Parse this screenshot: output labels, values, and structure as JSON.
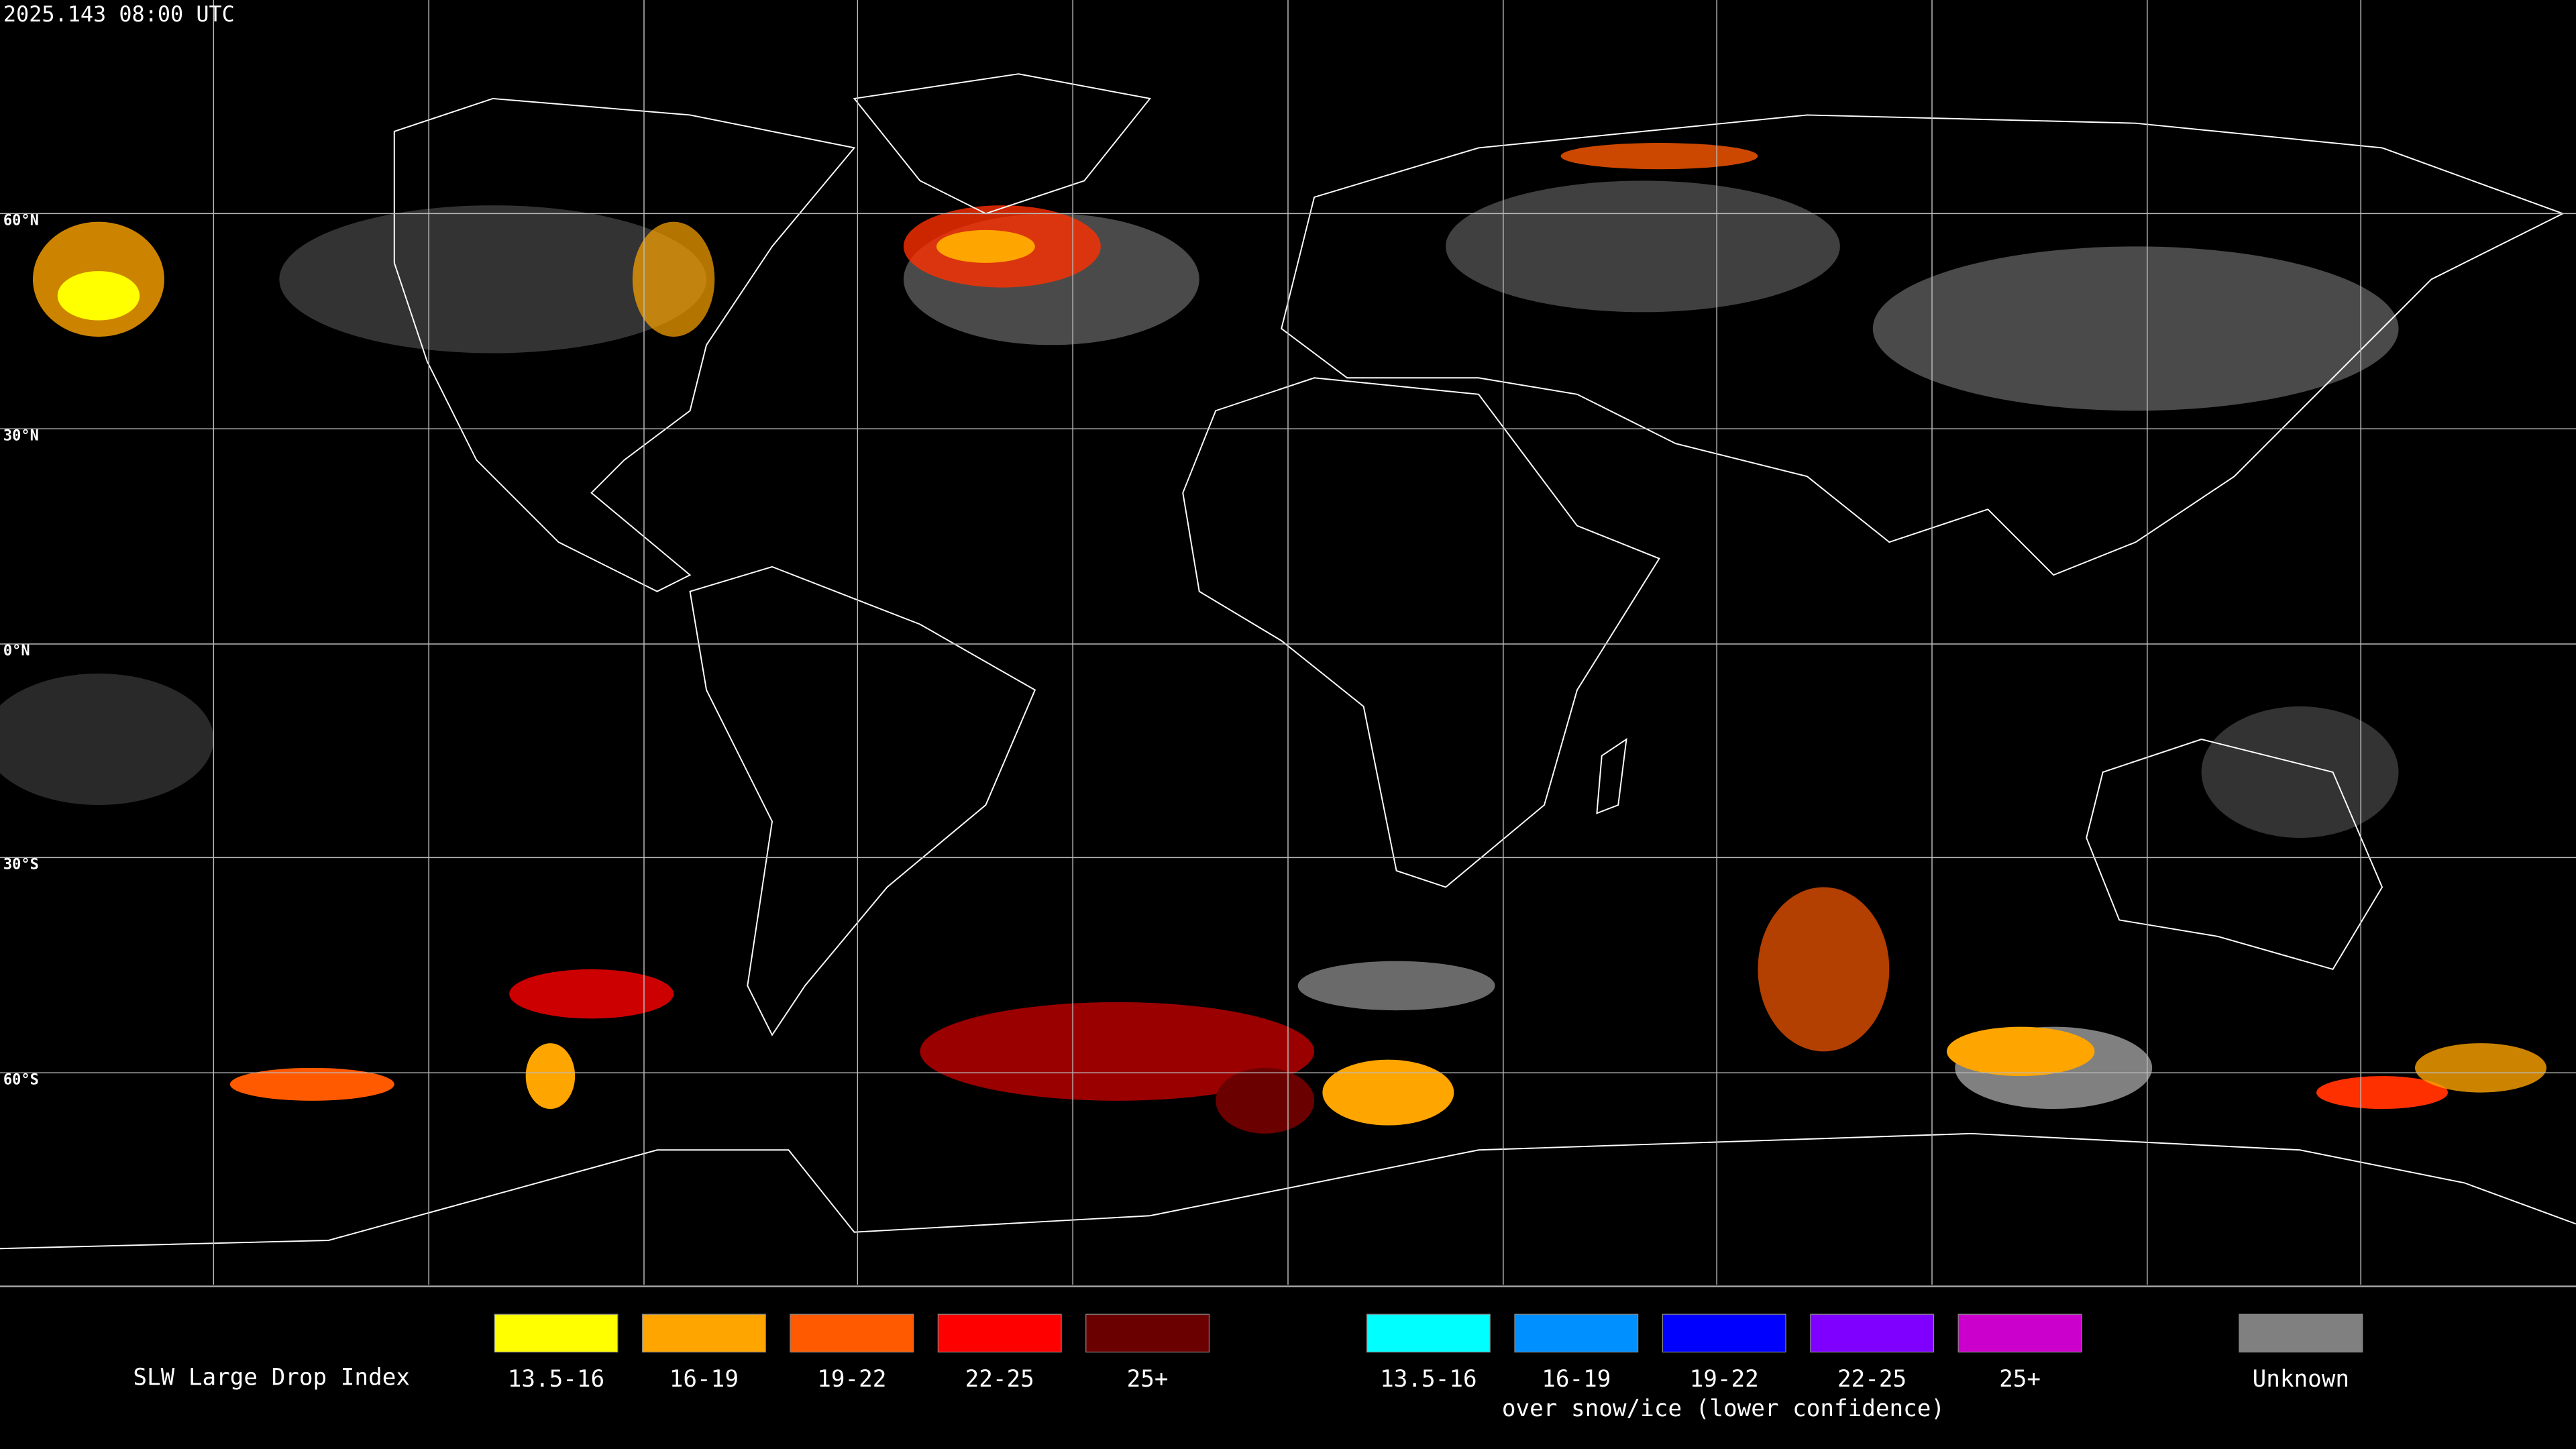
{
  "header": {
    "timestamp": "2025.143 08:00 UTC"
  },
  "map": {
    "latitude_labels": [
      "60°N",
      "30°N",
      "0°N",
      "30°S",
      "60°S"
    ]
  },
  "legend": {
    "title": "SLW Large Drop Index",
    "groups": [
      {
        "items": [
          {
            "label": "13.5-16",
            "color": "#ffff00"
          },
          {
            "label": "16-19",
            "color": "#ffa500"
          },
          {
            "label": "19-22",
            "color": "#ff5a00"
          },
          {
            "label": "22-25",
            "color": "#ff0000"
          },
          {
            "label": "25+",
            "color": "#6b0000"
          }
        ]
      },
      {
        "items": [
          {
            "label": "13.5-16",
            "color": "#00ffff"
          },
          {
            "label": "16-19",
            "color": "#0090ff"
          },
          {
            "label": "19-22",
            "color": "#0000ff"
          },
          {
            "label": "22-25",
            "color": "#8000ff"
          },
          {
            "label": "25+",
            "color": "#cc00cc"
          }
        ],
        "caption": "over snow/ice (lower confidence)"
      }
    ],
    "unknown": {
      "label": "Unknown",
      "color": "#808080"
    }
  }
}
